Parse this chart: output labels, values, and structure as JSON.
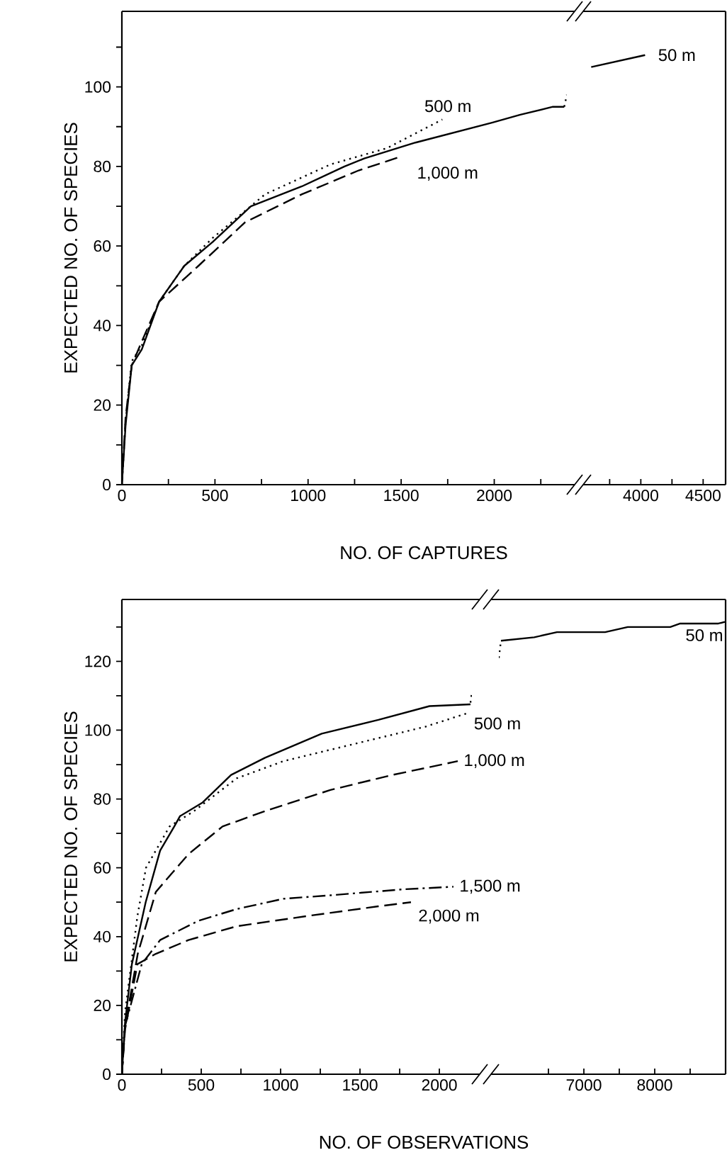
{
  "chart_data": [
    {
      "type": "line",
      "xlabel": "NO. OF CAPTURES",
      "ylabel": "EXPECTED NO. OF SPECIES",
      "xlim": [
        0,
        2390
      ],
      "ylim": [
        0,
        119
      ],
      "xticks": [
        0,
        {
          "value": 250,
          "label": null
        },
        500,
        {
          "value": 750,
          "label": null
        },
        1000,
        {
          "value": 1250,
          "label": null
        },
        1500,
        {
          "value": 1750,
          "label": null
        },
        2000,
        {
          "value": 2250,
          "label": null
        }
      ],
      "yticks": [
        0,
        {
          "value": 10,
          "label": null
        },
        20,
        {
          "value": 30,
          "label": null
        },
        40,
        {
          "value": 50,
          "label": null
        },
        60,
        {
          "value": 70,
          "label": null
        },
        80,
        {
          "value": 90,
          "label": null
        },
        100,
        {
          "value": 110,
          "label": null
        }
      ],
      "series": [
        {
          "color": "#000000",
          "line_style": "solid",
          "x": [
            0,
            20,
            53,
            107,
            200,
            335,
            487,
            693,
            967,
            1196,
            1302,
            1577,
            1988,
            2140,
            2315,
            2376
          ],
          "values": [
            0,
            15,
            30,
            34,
            46,
            55,
            61,
            70,
            75,
            80,
            82,
            86,
            91,
            93,
            95,
            95
          ]
        },
        {
          "name": "500 m",
          "color": "#000000",
          "line_style": "dotted",
          "x": [
            0,
            20,
            53,
            107,
            200,
            335,
            487,
            769,
            1120,
            1424,
            1721
          ],
          "values": [
            0,
            16,
            31,
            35,
            46,
            55,
            62,
            73,
            80.5,
            84.6,
            91.8
          ]
        },
        {
          "name": "1,000 m",
          "color": "#000000",
          "line_style": "dashed",
          "x": [
            0,
            20,
            53,
            107,
            200,
            411,
            663,
            967,
            1272,
            1500
          ],
          "values": [
            0,
            17,
            30,
            36,
            46,
            55,
            66,
            73,
            79,
            82.5
          ]
        },
        {
          "color": "#000000",
          "line_style": "dotted",
          "x": [
            2376,
            2390
          ],
          "values": [
            95,
            98
          ]
        }
      ]
    },
    {
      "type": "line",
      "xlim": [
        3600,
        4680
      ],
      "ylim": [
        0,
        119
      ],
      "tick_labels": "x",
      "xticks": [
        {
          "value": 3750,
          "label": null
        },
        4000,
        {
          "value": 4250,
          "label": null
        },
        4500
      ],
      "series": [
        {
          "name": "50 m",
          "color": "#000000",
          "line_style": "solid",
          "x": [
            3602,
            4034
          ],
          "values": [
            105,
            108
          ]
        }
      ]
    },
    {
      "type": "line",
      "xlabel": "NO. OF OBSERVATIONS",
      "ylabel": "EXPECTED NO. OF SPECIES",
      "xlim": [
        0,
        2205
      ],
      "ylim": [
        0,
        138
      ],
      "xticks": [
        0,
        {
          "value": 250,
          "label": null
        },
        500,
        {
          "value": 750,
          "label": null
        },
        1000,
        {
          "value": 1250,
          "label": null
        },
        1500,
        {
          "value": 1750,
          "label": null
        },
        2000
      ],
      "yticks": [
        0,
        {
          "value": 10,
          "label": null
        },
        20,
        {
          "value": 30,
          "label": null
        },
        40,
        {
          "value": 50,
          "label": null
        },
        60,
        {
          "value": 70,
          "label": null
        },
        80,
        {
          "value": 90,
          "label": null
        },
        100,
        {
          "value": 110,
          "label": null
        },
        120,
        {
          "value": 130,
          "label": null
        }
      ],
      "series": [
        {
          "color": "#000000",
          "line_style": "solid",
          "x": [
            0,
            20,
            63,
            150,
            241,
            330,
            366,
            509,
            688,
            902,
            1259,
            1616,
            1938,
            2196
          ],
          "values": [
            0,
            15,
            32,
            50,
            65,
            72,
            75,
            79,
            87,
            92,
            99,
            103,
            107,
            107.5
          ]
        },
        {
          "name": "500 m",
          "color": "#000000",
          "line_style": "dotted",
          "x": [
            0,
            20,
            98,
            152,
            300,
            455,
            723,
            1018,
            1464,
            1911,
            2180
          ],
          "values": [
            0,
            18,
            46,
            60,
            72,
            76.5,
            86,
            91,
            96,
            101,
            105
          ]
        },
        {
          "name": "1,000 m",
          "color": "#000000",
          "line_style": "dashed",
          "x": [
            0,
            20,
            100,
            214,
            420,
            634,
            902,
            1313,
            1705,
            2116
          ],
          "values": [
            0,
            14,
            35,
            53,
            64,
            72,
            76.5,
            82.6,
            87,
            91
          ]
        },
        {
          "name": "1,500 m",
          "color": "#000000",
          "line_style": "dashdot",
          "x": [
            0,
            20,
            125,
            241,
            482,
            723,
            1018,
            1313,
            1759,
            2089
          ],
          "values": [
            0,
            14,
            32,
            39,
            44.6,
            48,
            51,
            52,
            53.7,
            54.5
          ]
        },
        {
          "name": "2,000 m",
          "color": "#000000",
          "line_style": "dashed",
          "x": [
            0,
            20,
            98,
            214,
            420,
            723,
            1170,
            1616,
            1821
          ],
          "values": [
            0,
            13,
            32,
            35,
            39,
            43,
            46,
            48.8,
            50
          ]
        },
        {
          "color": "#000000",
          "line_style": "dotted",
          "x": [
            2196,
            2205
          ],
          "values": [
            108,
            111
          ]
        }
      ]
    },
    {
      "type": "line",
      "xlim": [
        5800,
        9000
      ],
      "ylim": [
        0,
        138
      ],
      "tick_labels": "x",
      "xticks": [
        {
          "value": 6500,
          "label": null
        },
        7000,
        {
          "value": 7500,
          "label": null
        },
        8000,
        {
          "value": 8500,
          "label": null
        }
      ],
      "series": [
        {
          "color": "#000000",
          "line_style": "dotted",
          "x": [
            5800,
            5830
          ],
          "values": [
            121,
            126
          ]
        },
        {
          "name": "50 m",
          "color": "#000000",
          "line_style": "solid",
          "x": [
            5830,
            6300,
            6620,
            7300,
            7620,
            8220,
            8360,
            8900,
            8990
          ],
          "values": [
            126,
            127,
            128.5,
            128.5,
            130,
            130,
            131,
            131,
            131.5
          ]
        }
      ]
    }
  ]
}
